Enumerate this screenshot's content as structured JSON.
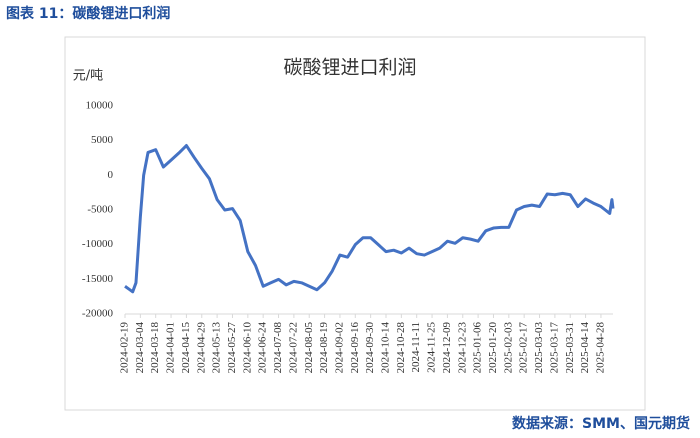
{
  "header": "图表 11：碳酸锂进口利润",
  "footer": "数据来源：SMM、国元期货",
  "chart_data": {
    "type": "line",
    "title": "碳酸锂进口利润",
    "y_label": "元/吨",
    "x": [
      "2024-02-19",
      "2024-02-26",
      "2024-02-29",
      "2024-03-04",
      "2024-03-07",
      "2024-03-11",
      "2024-03-18",
      "2024-03-25",
      "2024-04-01",
      "2024-04-08",
      "2024-04-15",
      "2024-04-22",
      "2024-04-29",
      "2024-05-06",
      "2024-05-13",
      "2024-05-20",
      "2024-05-27",
      "2024-06-03",
      "2024-06-10",
      "2024-06-17",
      "2024-06-24",
      "2024-07-01",
      "2024-07-08",
      "2024-07-15",
      "2024-07-22",
      "2024-07-29",
      "2024-08-05",
      "2024-08-12",
      "2024-08-19",
      "2024-08-26",
      "2024-09-02",
      "2024-09-09",
      "2024-09-16",
      "2024-09-23",
      "2024-09-30",
      "2024-10-07",
      "2024-10-14",
      "2024-10-21",
      "2024-10-28",
      "2024-11-04",
      "2024-11-11",
      "2024-11-18",
      "2024-11-25",
      "2024-12-02",
      "2024-12-09",
      "2024-12-16",
      "2024-12-23",
      "2024-12-30",
      "2025-01-06",
      "2025-01-13",
      "2025-01-20",
      "2025-01-27",
      "2025-02-03",
      "2025-02-10",
      "2025-02-17",
      "2025-02-24",
      "2025-03-03",
      "2025-03-10",
      "2025-03-17",
      "2025-03-24",
      "2025-03-31",
      "2025-04-07",
      "2025-04-14",
      "2025-04-21",
      "2025-04-28",
      "2025-05-02",
      "2025-05-06",
      "2025-05-08",
      "2025-05-09"
    ],
    "series": [
      {
        "name": "碳酸锂进口利润",
        "color": "#4472c4",
        "values": [
          -16000,
          -16800,
          -15500,
          -6000,
          0,
          3300,
          3700,
          1200,
          2200,
          3200,
          4300,
          2600,
          1000,
          -500,
          -3500,
          -5000,
          -4800,
          -6500,
          -11000,
          -13000,
          -16000,
          -15500,
          -15000,
          -15800,
          -15300,
          -15500,
          -16000,
          -16500,
          -15500,
          -13800,
          -11500,
          -11800,
          -10000,
          -9000,
          -9000,
          -10000,
          -11000,
          -10800,
          -11200,
          -10500,
          -11300,
          -11500,
          -11000,
          -10500,
          -9500,
          -9800,
          -9000,
          -9200,
          -9500,
          -8000,
          -7600,
          -7500,
          -7500,
          -5000,
          -4500,
          -4300,
          -4500,
          -2700,
          -2800,
          -2600,
          -2800,
          -4500,
          -3400,
          -4000,
          -4500,
          -5000,
          -5500,
          -3500,
          -4800
        ]
      }
    ],
    "xlim": [
      "2024-02-19",
      "2025-05-09"
    ],
    "xticks": [
      "2024-02-19",
      "2024-03-04",
      "2024-03-18",
      "2024-04-01",
      "2024-04-15",
      "2024-04-29",
      "2024-05-13",
      "2024-05-27",
      "2024-06-10",
      "2024-06-24",
      "2024-07-08",
      "2024-07-22",
      "2024-08-05",
      "2024-08-19",
      "2024-09-02",
      "2024-09-16",
      "2024-09-30",
      "2024-10-14",
      "2024-10-28",
      "2024-11-11",
      "2024-11-25",
      "2024-12-09",
      "2024-12-23",
      "2025-01-06",
      "2025-01-20",
      "2025-02-03",
      "2025-02-17",
      "2025-03-03",
      "2025-03-17",
      "2025-03-31",
      "2025-04-14",
      "2025-04-28"
    ],
    "ylim": [
      -20000,
      10000
    ],
    "yticks": [
      10000,
      5000,
      0,
      -5000,
      -10000,
      -15000,
      -20000
    ],
    "grid": false
  }
}
